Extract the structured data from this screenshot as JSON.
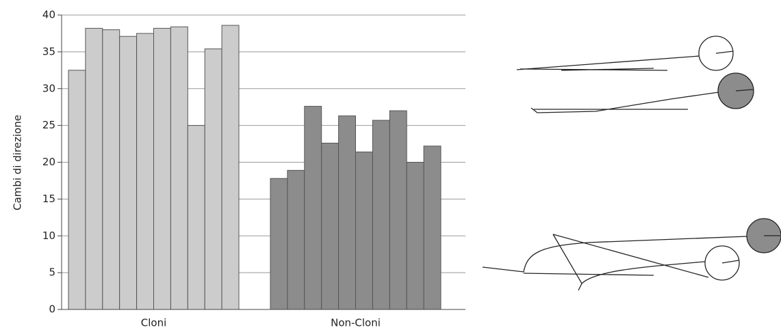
{
  "chart_data": {
    "type": "grouped-bar",
    "ylabel": "Cambi di direzione",
    "ylim": [
      0,
      40
    ],
    "yticks": [
      0,
      5,
      10,
      15,
      20,
      25,
      30,
      35,
      40
    ],
    "grid": true,
    "groups": [
      {
        "label": "Cloni",
        "color": "#cccccc",
        "values": [
          32.5,
          38.2,
          38.0,
          37.1,
          37.5,
          38.2,
          38.4,
          25.0,
          35.4,
          38.6
        ]
      },
      {
        "label": "Non-Cloni",
        "color": "#8c8c8c",
        "values": [
          17.8,
          18.9,
          27.6,
          22.6,
          26.3,
          21.4,
          25.7,
          27.0,
          20.0,
          22.2
        ]
      }
    ]
  }
}
